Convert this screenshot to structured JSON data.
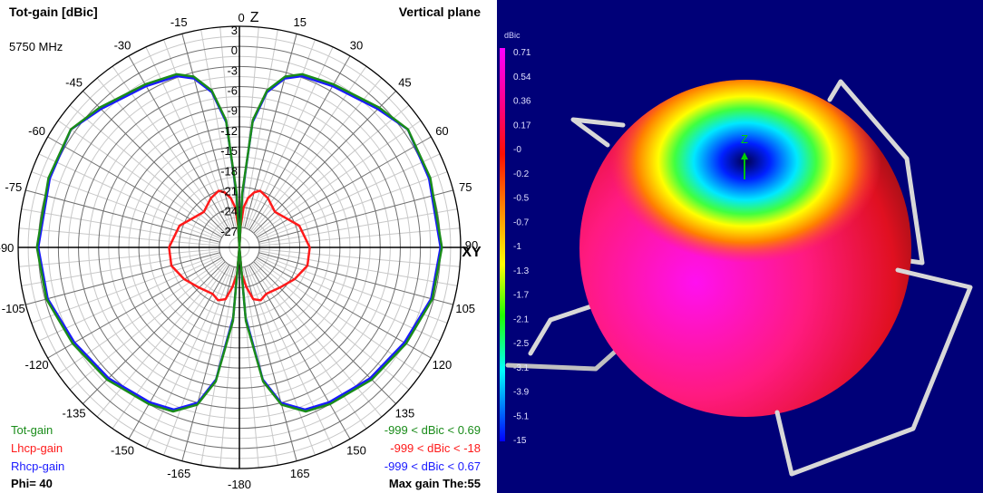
{
  "polar": {
    "title": "Tot-gain [dBic]",
    "plane": "Vertical plane",
    "frequency": "5750 MHz",
    "phi": "Phi= 40",
    "max_gain": "Max gain The:55",
    "legend": [
      {
        "name": "Tot-gain",
        "range": "-999 < dBic < 0.69",
        "color": "#1a8c1a"
      },
      {
        "name": "Lhcp-gain",
        "range": "-999 < dBic < -18",
        "color": "#ff1a1a"
      },
      {
        "name": "Rhcp-gain",
        "range": "-999 < dBic < 0.67",
        "color": "#1a1aff"
      }
    ]
  },
  "chart_data": [
    {
      "type": "line",
      "subtype": "polar",
      "title": "Tot-gain [dBic]",
      "r_unit": "dBic",
      "r_range": [
        -30,
        3
      ],
      "r_tick_labels": [
        "3",
        "0",
        "-3",
        "-6",
        "-9",
        "-12",
        "-15",
        "-18",
        "-21",
        "-24",
        "-27"
      ],
      "angle_tick_labels": [
        "0 Z",
        "15",
        "30",
        "45",
        "60",
        "75",
        "90 XY",
        "105",
        "120",
        "135",
        "150",
        "165",
        "-180",
        "-165",
        "-150",
        "-135",
        "-120",
        "-105",
        "-90",
        "-75",
        "-60",
        "-45",
        "-30",
        "-15"
      ],
      "angle_ticks": [
        0,
        15,
        30,
        45,
        60,
        75,
        90,
        105,
        120,
        135,
        150,
        165,
        180,
        -165,
        -150,
        -135,
        -120,
        -105,
        -90,
        -75,
        -60,
        -45,
        -30,
        -15
      ],
      "grid": true,
      "symmetric": true,
      "theta": [
        0,
        3,
        6,
        10,
        15,
        20,
        30,
        45,
        55,
        70,
        90,
        105,
        120,
        135,
        150,
        158,
        165,
        170,
        175,
        180
      ],
      "series": [
        {
          "name": "Rhcp-gain",
          "color": "#1a1aff",
          "values": [
            -30,
            -22.2,
            -11.2,
            -6.5,
            -3.9,
            -2.8,
            -2.2,
            -0.8,
            0.67,
            0.1,
            0.0,
            -0.4,
            -1.6,
            -2.4,
            -3.3,
            -3.9,
            -6.0,
            -10.0,
            -19.5,
            -30
          ]
        },
        {
          "name": "Lhcp-gain",
          "color": "#ff1a1a",
          "values": [
            -30,
            -27,
            -24,
            -22.5,
            -21.5,
            -21,
            -21.5,
            -22.5,
            -22,
            -20.5,
            -19.5,
            -19.5,
            -20.5,
            -21.5,
            -22,
            -21.5,
            -22,
            -24,
            -26,
            -30
          ]
        },
        {
          "name": "Tot-gain",
          "color": "#1a8c1a",
          "values": [
            -30,
            -21.9,
            -10.9,
            -6.2,
            -3.6,
            -2.5,
            -1.9,
            -0.5,
            0.69,
            0.3,
            0.2,
            -0.2,
            -1.3,
            -2.1,
            -3.0,
            -3.6,
            -5.7,
            -9.7,
            -19.0,
            -30
          ]
        }
      ]
    },
    {
      "type": "heatmap",
      "subtype": "colorbar",
      "title": "dBic",
      "tick_labels": [
        "0.71",
        "0.54",
        "0.36",
        "0.17",
        "-0",
        "-0.2",
        "-0.5",
        "-0.7",
        "-1",
        "-1.3",
        "-1.7",
        "-2.1",
        "-2.5",
        "-3.1",
        "-3.9",
        "-5.1",
        "-15"
      ],
      "colors": [
        "#ff00ff",
        "#ff0080",
        "#ff0000",
        "#ff8000",
        "#ffff00",
        "#00ff00",
        "#00ffff",
        "#0000ff"
      ]
    }
  ],
  "view3d": {
    "axis_label": "Z",
    "background": "#000078"
  }
}
